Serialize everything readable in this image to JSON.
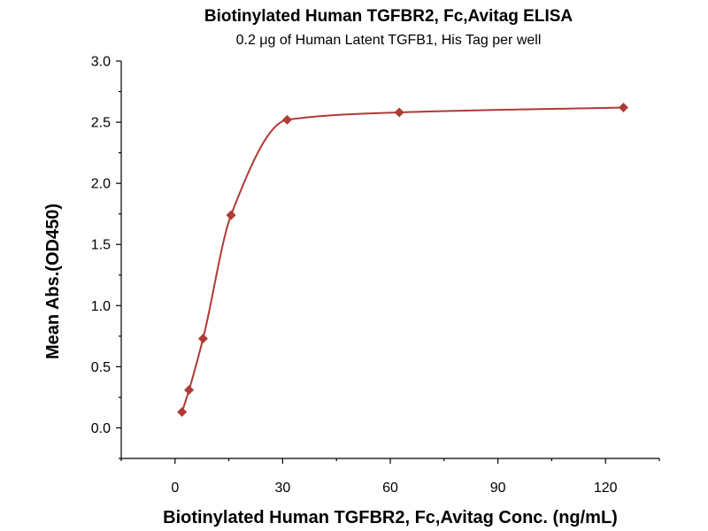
{
  "chart_data": {
    "type": "scatter",
    "title": "Biotinylated Human TGFBR2, Fc,Avitag ELISA",
    "subtitle": "0.2 μg of Human Latent TGFB1, His Tag per well",
    "xlabel": "Biotinylated Human TGFBR2, Fc,Avitag Conc. (ng/mL)",
    "ylabel": "Mean Abs.(OD450)",
    "xlim": [
      -15,
      135
    ],
    "ylim": [
      -0.25,
      3.0
    ],
    "xticks": [
      0,
      30,
      60,
      90,
      120
    ],
    "xtick_labels": [
      "0",
      "30",
      "60",
      "90",
      "120"
    ],
    "yticks": [
      0.0,
      0.5,
      1.0,
      1.5,
      2.0,
      2.5,
      3.0
    ],
    "ytick_labels": [
      "0.0",
      "0.5",
      "1.0",
      "1.5",
      "2.0",
      "2.5",
      "3.0"
    ],
    "grid": false,
    "series": [
      {
        "x": [
          1.95,
          3.9,
          7.8,
          15.6,
          31.25,
          62.5,
          125
        ],
        "y": [
          0.13,
          0.31,
          0.73,
          1.74,
          2.52,
          2.58,
          2.62
        ],
        "color": "#b03a36",
        "marker": "diamond",
        "fit": "sigmoidal"
      }
    ]
  }
}
